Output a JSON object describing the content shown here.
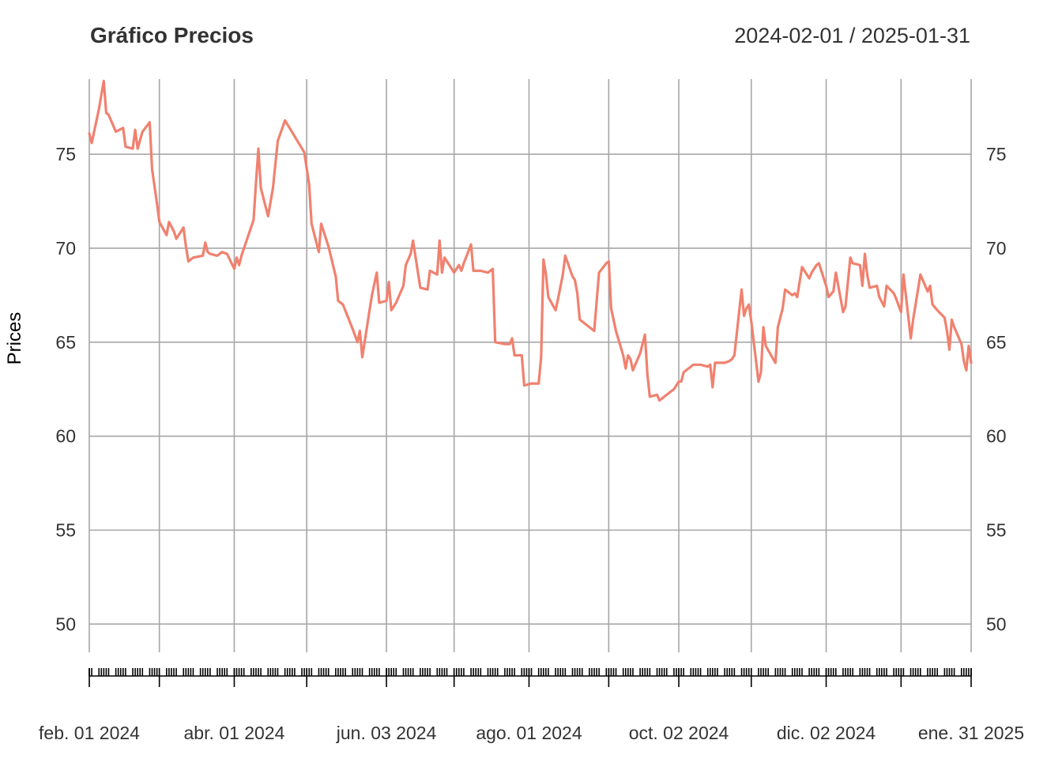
{
  "chart_data": {
    "type": "line",
    "title": "Gráfico Precios",
    "date_range": "2024-02-01 / 2025-01-31",
    "ylabel": "Prices",
    "xlabel": "",
    "ylim": [
      48.5,
      79
    ],
    "y_ticks": [
      50,
      55,
      60,
      65,
      70,
      75
    ],
    "x_range": [
      "2024-02-01",
      "2025-01-31"
    ],
    "x_major_ticks": [
      {
        "date": "2024-02-01",
        "label": "feb. 01 2024"
      },
      {
        "date": "2024-03-01",
        "label": ""
      },
      {
        "date": "2024-04-01",
        "label": "abr. 01 2024"
      },
      {
        "date": "2024-05-01",
        "label": ""
      },
      {
        "date": "2024-06-03",
        "label": "jun. 03 2024"
      },
      {
        "date": "2024-07-01",
        "label": ""
      },
      {
        "date": "2024-08-01",
        "label": "ago. 01 2024"
      },
      {
        "date": "2024-09-03",
        "label": ""
      },
      {
        "date": "2024-10-02",
        "label": "oct. 02 2024"
      },
      {
        "date": "2024-11-01",
        "label": ""
      },
      {
        "date": "2024-12-02",
        "label": "dic. 02 2024"
      },
      {
        "date": "2025-01-02",
        "label": ""
      },
      {
        "date": "2025-01-31",
        "label": "ene. 31 2025"
      }
    ],
    "grid": true,
    "line_color": "#f0816f",
    "series": [
      {
        "points": [
          [
            "2024-02-01",
            76.1
          ],
          [
            "2024-02-02",
            75.6
          ],
          [
            "2024-02-05",
            77.4
          ],
          [
            "2024-02-07",
            78.9
          ],
          [
            "2024-02-08",
            77.2
          ],
          [
            "2024-02-09",
            77.1
          ],
          [
            "2024-02-12",
            76.2
          ],
          [
            "2024-02-15",
            76.4
          ],
          [
            "2024-02-16",
            75.4
          ],
          [
            "2024-02-19",
            75.3
          ],
          [
            "2024-02-20",
            76.3
          ],
          [
            "2024-02-21",
            75.3
          ],
          [
            "2024-02-23",
            76.2
          ],
          [
            "2024-02-26",
            76.7
          ],
          [
            "2024-02-27",
            74.2
          ],
          [
            "2024-02-29",
            72.4
          ],
          [
            "2024-03-01",
            71.4
          ],
          [
            "2024-03-04",
            70.7
          ],
          [
            "2024-03-05",
            71.4
          ],
          [
            "2024-03-07",
            70.9
          ],
          [
            "2024-03-08",
            70.5
          ],
          [
            "2024-03-11",
            71.1
          ],
          [
            "2024-03-12",
            70.1
          ],
          [
            "2024-03-13",
            69.3
          ],
          [
            "2024-03-15",
            69.5
          ],
          [
            "2024-03-19",
            69.6
          ],
          [
            "2024-03-20",
            70.3
          ],
          [
            "2024-03-21",
            69.8
          ],
          [
            "2024-03-22",
            69.7
          ],
          [
            "2024-03-25",
            69.6
          ],
          [
            "2024-03-27",
            69.8
          ],
          [
            "2024-03-29",
            69.7
          ],
          [
            "2024-04-01",
            68.9
          ],
          [
            "2024-04-02",
            69.5
          ],
          [
            "2024-04-03",
            69.1
          ],
          [
            "2024-04-04",
            69.6
          ],
          [
            "2024-04-09",
            71.5
          ],
          [
            "2024-04-10",
            73.5
          ],
          [
            "2024-04-11",
            75.3
          ],
          [
            "2024-04-12",
            73.2
          ],
          [
            "2024-04-15",
            71.7
          ],
          [
            "2024-04-17",
            73.2
          ],
          [
            "2024-04-19",
            75.7
          ],
          [
            "2024-04-22",
            76.8
          ],
          [
            "2024-04-30",
            75.1
          ],
          [
            "2024-05-02",
            73.4
          ],
          [
            "2024-05-03",
            71.3
          ],
          [
            "2024-05-06",
            69.8
          ],
          [
            "2024-05-07",
            71.3
          ],
          [
            "2024-05-10",
            70.1
          ],
          [
            "2024-05-13",
            68.5
          ],
          [
            "2024-05-14",
            67.2
          ],
          [
            "2024-05-16",
            67.0
          ],
          [
            "2024-05-20",
            65.7
          ],
          [
            "2024-05-22",
            65.0
          ],
          [
            "2024-05-23",
            65.6
          ],
          [
            "2024-05-24",
            64.2
          ],
          [
            "2024-05-27",
            66.7
          ],
          [
            "2024-05-28",
            67.5
          ],
          [
            "2024-05-30",
            68.7
          ],
          [
            "2024-05-31",
            67.1
          ],
          [
            "2024-06-03",
            67.2
          ],
          [
            "2024-06-04",
            68.2
          ],
          [
            "2024-06-05",
            66.7
          ],
          [
            "2024-06-07",
            67.1
          ],
          [
            "2024-06-10",
            68.0
          ],
          [
            "2024-06-11",
            69.1
          ],
          [
            "2024-06-13",
            69.7
          ],
          [
            "2024-06-14",
            70.4
          ],
          [
            "2024-06-17",
            67.9
          ],
          [
            "2024-06-20",
            67.8
          ],
          [
            "2024-06-21",
            68.8
          ],
          [
            "2024-06-24",
            68.6
          ],
          [
            "2024-06-25",
            70.4
          ],
          [
            "2024-06-26",
            68.7
          ],
          [
            "2024-06-27",
            69.5
          ],
          [
            "2024-07-01",
            68.7
          ],
          [
            "2024-07-03",
            69.1
          ],
          [
            "2024-07-04",
            68.8
          ],
          [
            "2024-07-05",
            69.2
          ],
          [
            "2024-07-08",
            70.2
          ],
          [
            "2024-07-09",
            68.8
          ],
          [
            "2024-07-12",
            68.8
          ],
          [
            "2024-07-15",
            68.7
          ],
          [
            "2024-07-17",
            68.9
          ],
          [
            "2024-07-18",
            65.0
          ],
          [
            "2024-07-22",
            64.9
          ],
          [
            "2024-07-24",
            64.9
          ],
          [
            "2024-07-25",
            65.2
          ],
          [
            "2024-07-26",
            64.3
          ],
          [
            "2024-07-29",
            64.3
          ],
          [
            "2024-07-30",
            62.7
          ],
          [
            "2024-08-02",
            62.8
          ],
          [
            "2024-08-05",
            62.8
          ],
          [
            "2024-08-06",
            64.2
          ],
          [
            "2024-08-07",
            69.4
          ],
          [
            "2024-08-08",
            68.6
          ],
          [
            "2024-08-09",
            67.4
          ],
          [
            "2024-08-12",
            66.7
          ],
          [
            "2024-08-13",
            67.3
          ],
          [
            "2024-08-15",
            68.6
          ],
          [
            "2024-08-16",
            69.6
          ],
          [
            "2024-08-19",
            68.5
          ],
          [
            "2024-08-20",
            68.3
          ],
          [
            "2024-08-21",
            67.6
          ],
          [
            "2024-08-22",
            66.2
          ],
          [
            "2024-08-26",
            65.8
          ],
          [
            "2024-08-28",
            65.6
          ],
          [
            "2024-08-30",
            68.7
          ],
          [
            "2024-09-02",
            69.2
          ],
          [
            "2024-09-03",
            69.3
          ],
          [
            "2024-09-04",
            66.8
          ],
          [
            "2024-09-06",
            65.6
          ],
          [
            "2024-09-09",
            64.3
          ],
          [
            "2024-09-10",
            63.6
          ],
          [
            "2024-09-11",
            64.3
          ],
          [
            "2024-09-12",
            64.1
          ],
          [
            "2024-09-13",
            63.5
          ],
          [
            "2024-09-16",
            64.4
          ],
          [
            "2024-09-18",
            65.4
          ],
          [
            "2024-09-19",
            63.3
          ],
          [
            "2024-09-20",
            62.1
          ],
          [
            "2024-09-23",
            62.2
          ],
          [
            "2024-09-24",
            61.9
          ],
          [
            "2024-09-27",
            62.2
          ],
          [
            "2024-09-30",
            62.5
          ],
          [
            "2024-10-02",
            62.9
          ],
          [
            "2024-10-03",
            62.9
          ],
          [
            "2024-10-04",
            63.4
          ],
          [
            "2024-10-07",
            63.7
          ],
          [
            "2024-10-08",
            63.8
          ],
          [
            "2024-10-11",
            63.8
          ],
          [
            "2024-10-14",
            63.7
          ],
          [
            "2024-10-15",
            63.8
          ],
          [
            "2024-10-16",
            62.6
          ],
          [
            "2024-10-17",
            63.9
          ],
          [
            "2024-10-21",
            63.9
          ],
          [
            "2024-10-23",
            64.0
          ],
          [
            "2024-10-24",
            64.1
          ],
          [
            "2024-10-25",
            64.3
          ],
          [
            "2024-10-28",
            67.8
          ],
          [
            "2024-10-29",
            66.4
          ],
          [
            "2024-10-30",
            66.8
          ],
          [
            "2024-10-31",
            67.0
          ],
          [
            "2024-11-01",
            66.1
          ],
          [
            "2024-11-04",
            62.9
          ],
          [
            "2024-11-05",
            63.4
          ],
          [
            "2024-11-06",
            65.8
          ],
          [
            "2024-11-07",
            64.8
          ],
          [
            "2024-11-11",
            63.9
          ],
          [
            "2024-11-12",
            65.8
          ],
          [
            "2024-11-14",
            66.8
          ],
          [
            "2024-11-15",
            67.8
          ],
          [
            "2024-11-18",
            67.5
          ],
          [
            "2024-11-19",
            67.6
          ],
          [
            "2024-11-20",
            67.4
          ],
          [
            "2024-11-22",
            69.0
          ],
          [
            "2024-11-25",
            68.4
          ],
          [
            "2024-11-26",
            68.7
          ],
          [
            "2024-11-28",
            69.1
          ],
          [
            "2024-11-29",
            69.2
          ],
          [
            "2024-12-02",
            68.0
          ],
          [
            "2024-12-03",
            67.4
          ],
          [
            "2024-12-05",
            67.7
          ],
          [
            "2024-12-06",
            68.7
          ],
          [
            "2024-12-09",
            66.6
          ],
          [
            "2024-12-10",
            66.9
          ],
          [
            "2024-12-12",
            69.5
          ],
          [
            "2024-12-13",
            69.2
          ],
          [
            "2024-12-16",
            69.1
          ],
          [
            "2024-12-17",
            68.0
          ],
          [
            "2024-12-18",
            69.7
          ],
          [
            "2024-12-19",
            68.6
          ],
          [
            "2024-12-20",
            67.9
          ],
          [
            "2024-12-23",
            68.0
          ],
          [
            "2024-12-24",
            67.4
          ],
          [
            "2024-12-26",
            66.9
          ],
          [
            "2024-12-27",
            68.0
          ],
          [
            "2024-12-30",
            67.6
          ],
          [
            "2024-12-31",
            67.3
          ],
          [
            "2025-01-02",
            66.6
          ],
          [
            "2025-01-03",
            68.6
          ],
          [
            "2025-01-06",
            65.2
          ],
          [
            "2025-01-07",
            66.2
          ],
          [
            "2025-01-08",
            67.0
          ],
          [
            "2025-01-10",
            68.6
          ],
          [
            "2025-01-13",
            67.7
          ],
          [
            "2025-01-14",
            68.0
          ],
          [
            "2025-01-15",
            67.0
          ],
          [
            "2025-01-17",
            66.7
          ],
          [
            "2025-01-20",
            66.3
          ],
          [
            "2025-01-21",
            65.6
          ],
          [
            "2025-01-22",
            64.6
          ],
          [
            "2025-01-23",
            66.2
          ],
          [
            "2025-01-24",
            65.8
          ],
          [
            "2025-01-27",
            64.9
          ],
          [
            "2025-01-28",
            64.0
          ],
          [
            "2025-01-29",
            63.5
          ],
          [
            "2025-01-30",
            64.8
          ],
          [
            "2025-01-31",
            63.9
          ]
        ]
      }
    ]
  }
}
